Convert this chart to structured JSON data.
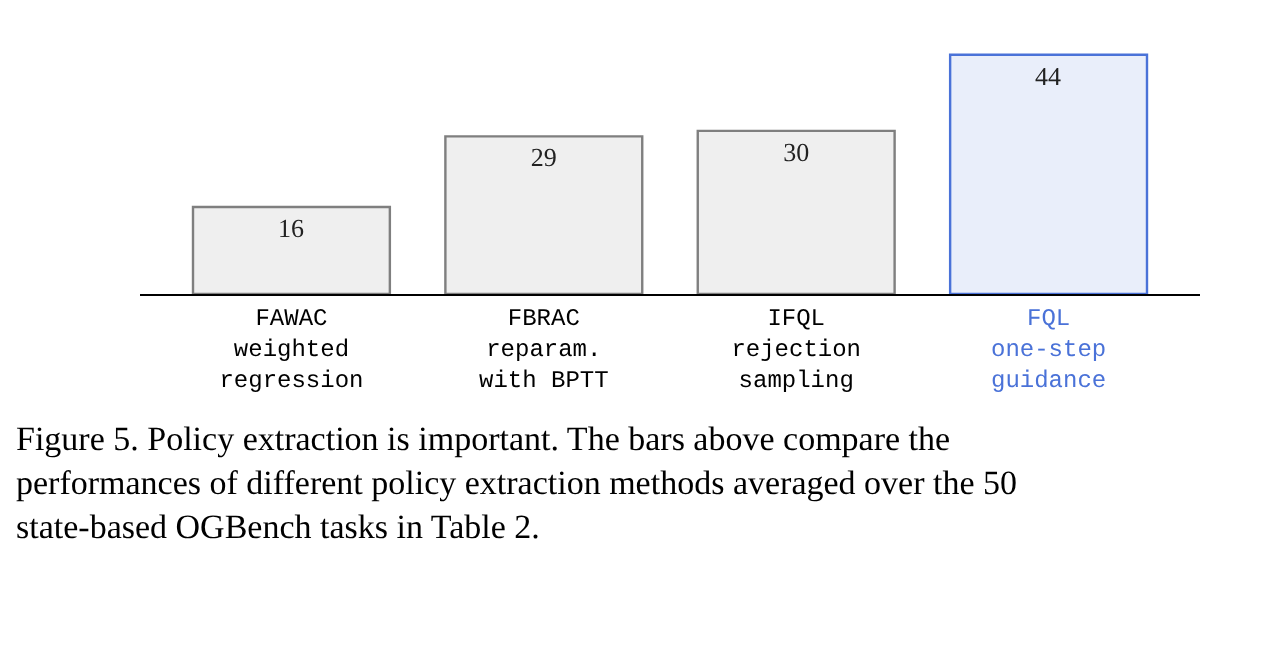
{
  "chart_data": {
    "type": "bar",
    "categories": [
      "FAWAC\nweighted\nregression",
      "FBRAC\nreparam.\nwith BPTT",
      "IFQL\nrejection\nsampling",
      "FQL\none-step\nguidance"
    ],
    "values": [
      16,
      29,
      30,
      44
    ],
    "colors": [
      "#7f7f7f",
      "#7f7f7f",
      "#7f7f7f",
      "#4a72d8"
    ],
    "data_labels": true,
    "annotations": [
      "Figure 5. Policy extraction is important. The bars above compare the performances of different policy extraction methods averaged over the 50 state-based OGBench tasks in Table 2."
    ]
  }
}
